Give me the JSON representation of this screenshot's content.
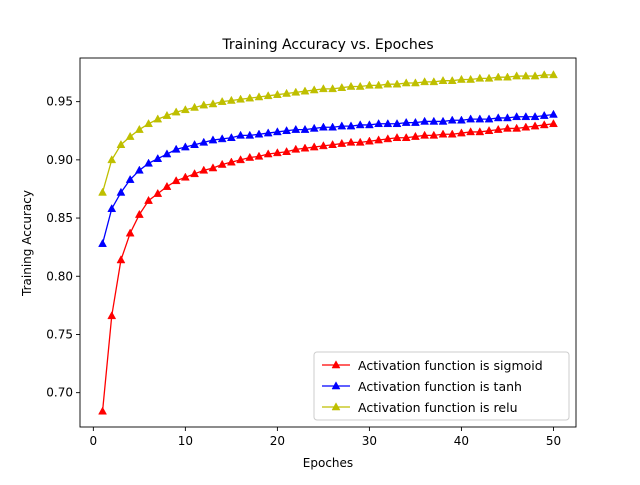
{
  "chart_data": {
    "type": "line",
    "title": "Training Accuracy vs. Epoches",
    "xlabel": "Epoches",
    "ylabel": "Training Accuracy",
    "xlim": [
      -1.45,
      52.45
    ],
    "ylim": [
      0.6705,
      0.9875
    ],
    "xticks": [
      0,
      10,
      20,
      30,
      40,
      50
    ],
    "xtick_labels": [
      "0",
      "10",
      "20",
      "30",
      "40",
      "50"
    ],
    "yticks": [
      0.7,
      0.75,
      0.8,
      0.85,
      0.9,
      0.95
    ],
    "ytick_labels": [
      "0.70",
      "0.75",
      "0.80",
      "0.85",
      "0.90",
      "0.95"
    ],
    "grid": false,
    "legend_position": "lower-right",
    "marker": "triangle",
    "x": [
      1,
      2,
      3,
      4,
      5,
      6,
      7,
      8,
      9,
      10,
      11,
      12,
      13,
      14,
      15,
      16,
      17,
      18,
      19,
      20,
      21,
      22,
      23,
      24,
      25,
      26,
      27,
      28,
      29,
      30,
      31,
      32,
      33,
      34,
      35,
      36,
      37,
      38,
      39,
      40,
      41,
      42,
      43,
      44,
      45,
      46,
      47,
      48,
      49,
      50
    ],
    "series": [
      {
        "name": "Activation function is sigmoid",
        "color": "#ff0000",
        "values": [
          0.684,
          0.766,
          0.814,
          0.837,
          0.853,
          0.865,
          0.871,
          0.877,
          0.882,
          0.885,
          0.888,
          0.891,
          0.893,
          0.896,
          0.898,
          0.9,
          0.902,
          0.903,
          0.905,
          0.906,
          0.907,
          0.909,
          0.91,
          0.911,
          0.912,
          0.913,
          0.914,
          0.915,
          0.915,
          0.916,
          0.917,
          0.918,
          0.919,
          0.919,
          0.92,
          0.921,
          0.921,
          0.922,
          0.922,
          0.923,
          0.924,
          0.924,
          0.925,
          0.926,
          0.927,
          0.927,
          0.928,
          0.929,
          0.93,
          0.931
        ]
      },
      {
        "name": "Activation function is tanh",
        "color": "#0000ff",
        "values": [
          0.828,
          0.858,
          0.872,
          0.883,
          0.891,
          0.897,
          0.901,
          0.905,
          0.909,
          0.911,
          0.913,
          0.915,
          0.917,
          0.918,
          0.919,
          0.921,
          0.921,
          0.922,
          0.923,
          0.924,
          0.925,
          0.926,
          0.926,
          0.927,
          0.928,
          0.928,
          0.929,
          0.929,
          0.93,
          0.93,
          0.931,
          0.931,
          0.931,
          0.932,
          0.932,
          0.933,
          0.933,
          0.933,
          0.934,
          0.934,
          0.935,
          0.935,
          0.935,
          0.936,
          0.936,
          0.937,
          0.937,
          0.937,
          0.938,
          0.939
        ]
      },
      {
        "name": "Activation function is relu",
        "color": "#bfbf00",
        "values": [
          0.872,
          0.9,
          0.913,
          0.92,
          0.926,
          0.931,
          0.935,
          0.938,
          0.941,
          0.943,
          0.945,
          0.947,
          0.948,
          0.95,
          0.951,
          0.952,
          0.953,
          0.954,
          0.955,
          0.956,
          0.957,
          0.958,
          0.959,
          0.96,
          0.961,
          0.961,
          0.962,
          0.963,
          0.963,
          0.964,
          0.964,
          0.965,
          0.965,
          0.966,
          0.966,
          0.967,
          0.967,
          0.968,
          0.968,
          0.969,
          0.969,
          0.97,
          0.97,
          0.971,
          0.971,
          0.972,
          0.972,
          0.972,
          0.973,
          0.973
        ]
      }
    ]
  }
}
